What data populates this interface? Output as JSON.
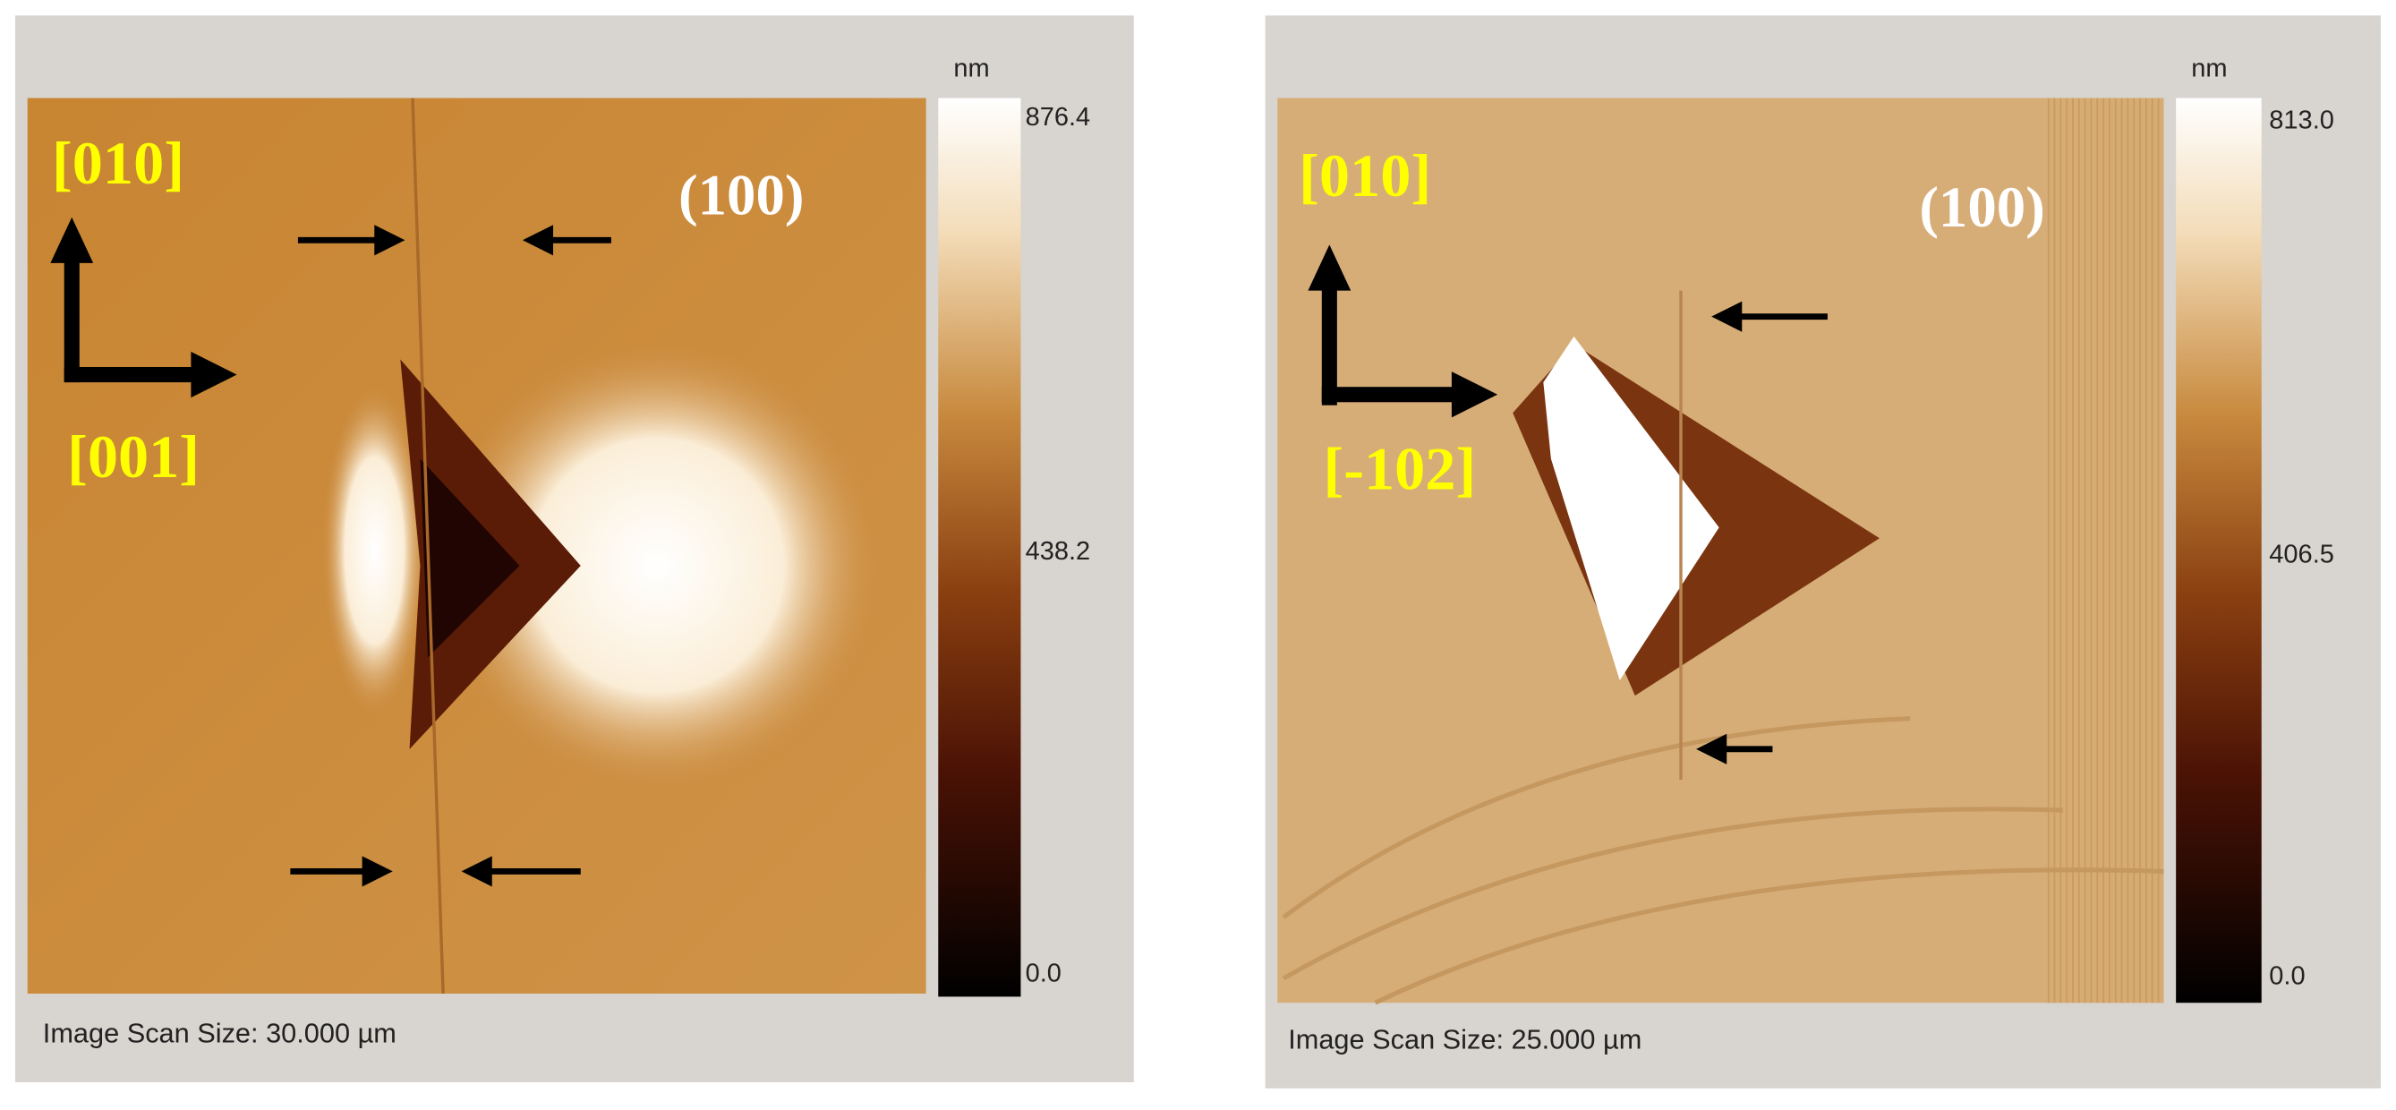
{
  "panels": [
    {
      "unit": "nm",
      "colorbar_labels": [
        "876.4",
        "438.2",
        "0.0"
      ],
      "scan_size": "Image Scan Size:  30.000 µm",
      "direction_up": "[010]",
      "direction_right": "[001]",
      "plane": "(100)"
    },
    {
      "unit": "nm",
      "colorbar_labels": [
        "813.0",
        "406.5",
        "0.0"
      ],
      "scan_size": "Image Scan Size:  25.000 µm",
      "direction_up": "[010]",
      "direction_right": "[-102]",
      "plane": "(100)"
    }
  ]
}
